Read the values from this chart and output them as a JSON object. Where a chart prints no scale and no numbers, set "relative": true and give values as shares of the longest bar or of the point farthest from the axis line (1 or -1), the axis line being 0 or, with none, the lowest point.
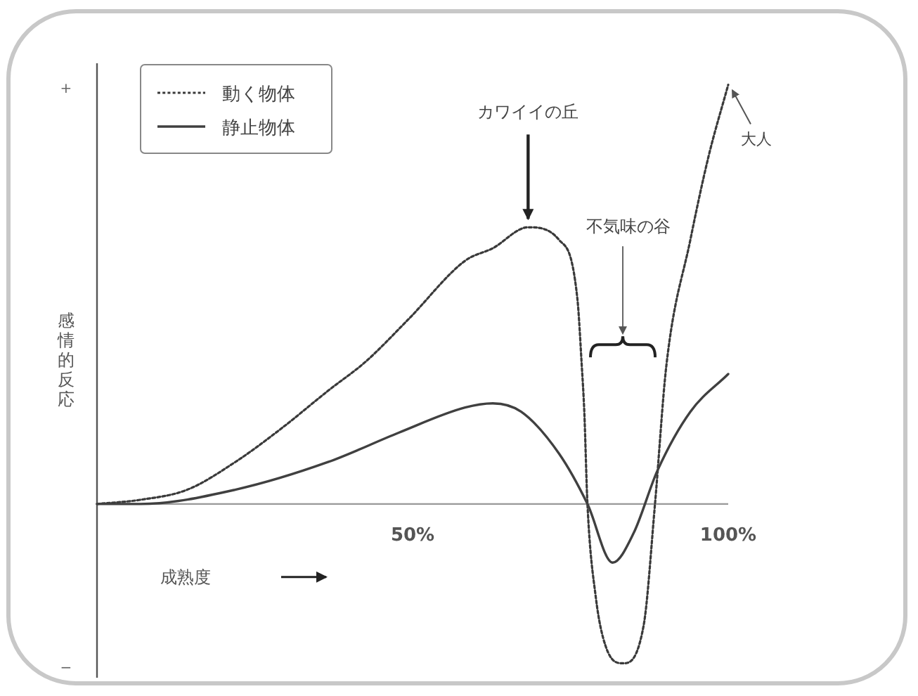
{
  "chart_data": {
    "type": "line",
    "relative": true,
    "xlabel": "成熟度",
    "ylabel": "感情的反応",
    "legend": "top left",
    "xlim": [
      0,
      100
    ],
    "xticks": [
      {
        "value": 50,
        "label": "50%"
      },
      {
        "value": 100,
        "label": "100%"
      }
    ],
    "annotations": [
      "+",
      "−",
      {
        "text": "カワイイの丘",
        "x": 68.3,
        "y": 0.66
      },
      "不気味の谷",
      {
        "text": "大人",
        "x": 100,
        "y": 1.0
      }
    ],
    "series": [
      {
        "name": "動く物体",
        "color": "#3a3a3a",
        "line_style": "dotted",
        "x": [
          0,
          6.9,
          14.3,
          21.9,
          29.2,
          36.6,
          42.6,
          49.3,
          58.3,
          62.7,
          68.3,
          73.2,
          76.1,
          76.8,
          77.2,
          77.7,
          79.0,
          80.6,
          83.3,
          86.6,
          88.4,
          90.2,
          94.0,
          96.9,
          100
        ],
        "values": [
          0,
          0.01,
          0.034,
          0.1,
          0.18,
          0.27,
          0.34,
          0.44,
          0.58,
          0.61,
          0.66,
          0.63,
          0.49,
          0.33,
          0.22,
          0,
          -0.22,
          -0.34,
          -0.38,
          -0.29,
          0,
          0.33,
          0.63,
          0.83,
          1.0
        ]
      },
      {
        "name": "静止物体",
        "color": "#404040",
        "line_style": "solid",
        "x": [
          0,
          6.9,
          21.9,
          36.6,
          47.8,
          58.3,
          62.7,
          67.2,
          73.2,
          77.7,
          81.7,
          85.0,
          88.8,
          94.0,
          100
        ],
        "values": [
          0,
          0,
          0.034,
          0.1,
          0.17,
          0.23,
          0.24,
          0.22,
          0.12,
          0,
          -0.14,
          -0.07,
          0.08,
          0.22,
          0.31
        ]
      }
    ]
  }
}
